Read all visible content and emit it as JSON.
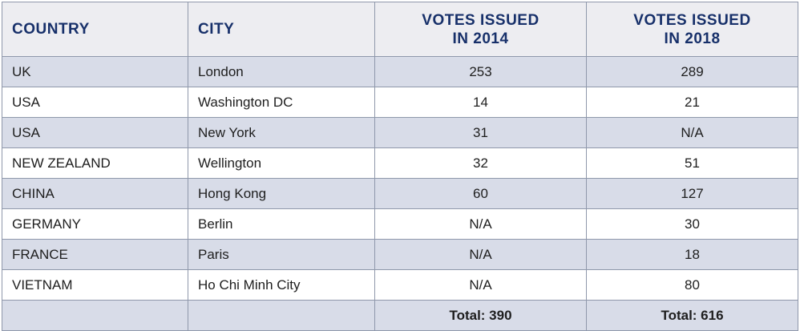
{
  "headers": {
    "country": "COUNTRY",
    "city": "CITY",
    "votes_2014_line1": "VOTES ISSUED",
    "votes_2014_line2": "IN 2014",
    "votes_2018_line1": "VOTES ISSUED",
    "votes_2018_line2": "IN 2018"
  },
  "rows": [
    {
      "country": "UK",
      "city": "London",
      "votes_2014": "253",
      "votes_2018": "289"
    },
    {
      "country": "USA",
      "city": "Washington DC",
      "votes_2014": "14",
      "votes_2018": "21"
    },
    {
      "country": "USA",
      "city": "New York",
      "votes_2014": "31",
      "votes_2018": "N/A"
    },
    {
      "country": "NEW ZEALAND",
      "city": "Wellington",
      "votes_2014": "32",
      "votes_2018": "51"
    },
    {
      "country": "CHINA",
      "city": "Hong Kong",
      "votes_2014": "60",
      "votes_2018": "127"
    },
    {
      "country": "GERMANY",
      "city": "Berlin",
      "votes_2014": "N/A",
      "votes_2018": "30"
    },
    {
      "country": "FRANCE",
      "city": "Paris",
      "votes_2014": "N/A",
      "votes_2018": "18"
    },
    {
      "country": "VIETNAM",
      "city": "Ho Chi Minh City",
      "votes_2014": "N/A",
      "votes_2018": "80"
    }
  ],
  "totals": {
    "country": "",
    "city": "",
    "votes_2014": "Total: 390",
    "votes_2018": "Total: 616"
  },
  "colors": {
    "header_bg": "#ededf1",
    "header_text": "#17306a",
    "stripe_bg": "#d8dce8",
    "border": "#8f98ab"
  }
}
